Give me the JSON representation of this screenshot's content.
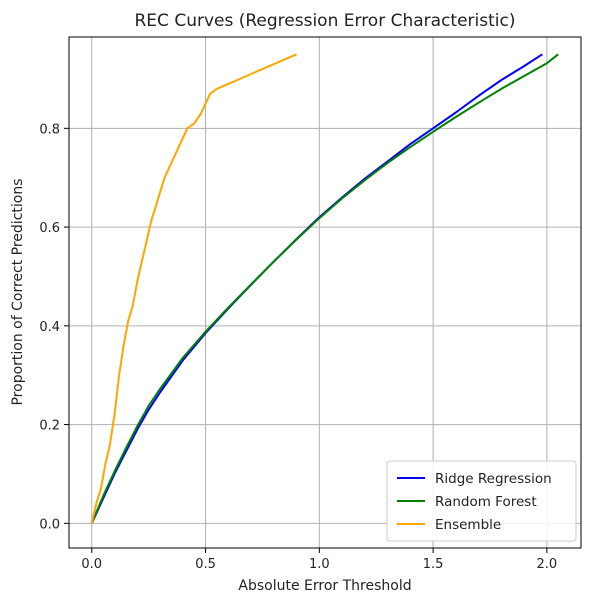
{
  "chart_data": {
    "type": "line",
    "title": "REC Curves (Regression Error Characteristic)",
    "xlabel": "Absolute Error Threshold",
    "ylabel": "Proportion of Correct Predictions",
    "xlim": [
      -0.1,
      2.15
    ],
    "ylim": [
      -0.05,
      0.985
    ],
    "xticks": [
      0.0,
      0.5,
      1.0,
      1.5,
      2.0
    ],
    "xtick_labels": [
      "0.0",
      "0.5",
      "1.0",
      "1.5",
      "2.0"
    ],
    "yticks": [
      0.0,
      0.2,
      0.4,
      0.6,
      0.8
    ],
    "ytick_labels": [
      "0.0",
      "0.2",
      "0.4",
      "0.6",
      "0.8"
    ],
    "grid": true,
    "legend_position": "bottom-right",
    "series": [
      {
        "name": "Ridge Regression",
        "color": "#0000ff",
        "x": [
          0.0,
          0.05,
          0.1,
          0.15,
          0.2,
          0.25,
          0.3,
          0.4,
          0.5,
          0.6,
          0.7,
          0.8,
          0.9,
          1.0,
          1.1,
          1.2,
          1.3,
          1.4,
          1.5,
          1.6,
          1.7,
          1.8,
          1.9,
          1.98
        ],
        "y": [
          0.0,
          0.05,
          0.1,
          0.145,
          0.19,
          0.23,
          0.265,
          0.33,
          0.385,
          0.435,
          0.483,
          0.53,
          0.576,
          0.62,
          0.66,
          0.698,
          0.733,
          0.768,
          0.8,
          0.832,
          0.866,
          0.898,
          0.926,
          0.95
        ]
      },
      {
        "name": "Random Forest",
        "color": "#008000",
        "x": [
          0.0,
          0.05,
          0.1,
          0.15,
          0.2,
          0.25,
          0.3,
          0.4,
          0.5,
          0.6,
          0.7,
          0.8,
          0.9,
          1.0,
          1.1,
          1.2,
          1.3,
          1.4,
          1.5,
          1.6,
          1.7,
          1.8,
          1.9,
          2.0,
          2.05
        ],
        "y": [
          0.0,
          0.055,
          0.105,
          0.152,
          0.197,
          0.238,
          0.272,
          0.335,
          0.388,
          0.437,
          0.484,
          0.53,
          0.575,
          0.618,
          0.658,
          0.695,
          0.73,
          0.762,
          0.793,
          0.823,
          0.852,
          0.88,
          0.906,
          0.932,
          0.95
        ]
      },
      {
        "name": "Ensemble",
        "color": "#ffa500",
        "x": [
          0.0,
          0.02,
          0.04,
          0.06,
          0.08,
          0.1,
          0.12,
          0.14,
          0.16,
          0.18,
          0.2,
          0.22,
          0.24,
          0.26,
          0.28,
          0.3,
          0.32,
          0.34,
          0.36,
          0.38,
          0.4,
          0.42,
          0.45,
          0.48,
          0.5,
          0.52,
          0.55,
          0.6,
          0.65,
          0.7,
          0.75,
          0.8,
          0.85,
          0.9
        ],
        "y": [
          0.0,
          0.04,
          0.07,
          0.12,
          0.16,
          0.22,
          0.3,
          0.36,
          0.41,
          0.44,
          0.49,
          0.53,
          0.57,
          0.61,
          0.64,
          0.67,
          0.7,
          0.72,
          0.74,
          0.76,
          0.78,
          0.8,
          0.81,
          0.83,
          0.85,
          0.87,
          0.88,
          0.89,
          0.9,
          0.91,
          0.92,
          0.93,
          0.94,
          0.95
        ]
      }
    ]
  }
}
